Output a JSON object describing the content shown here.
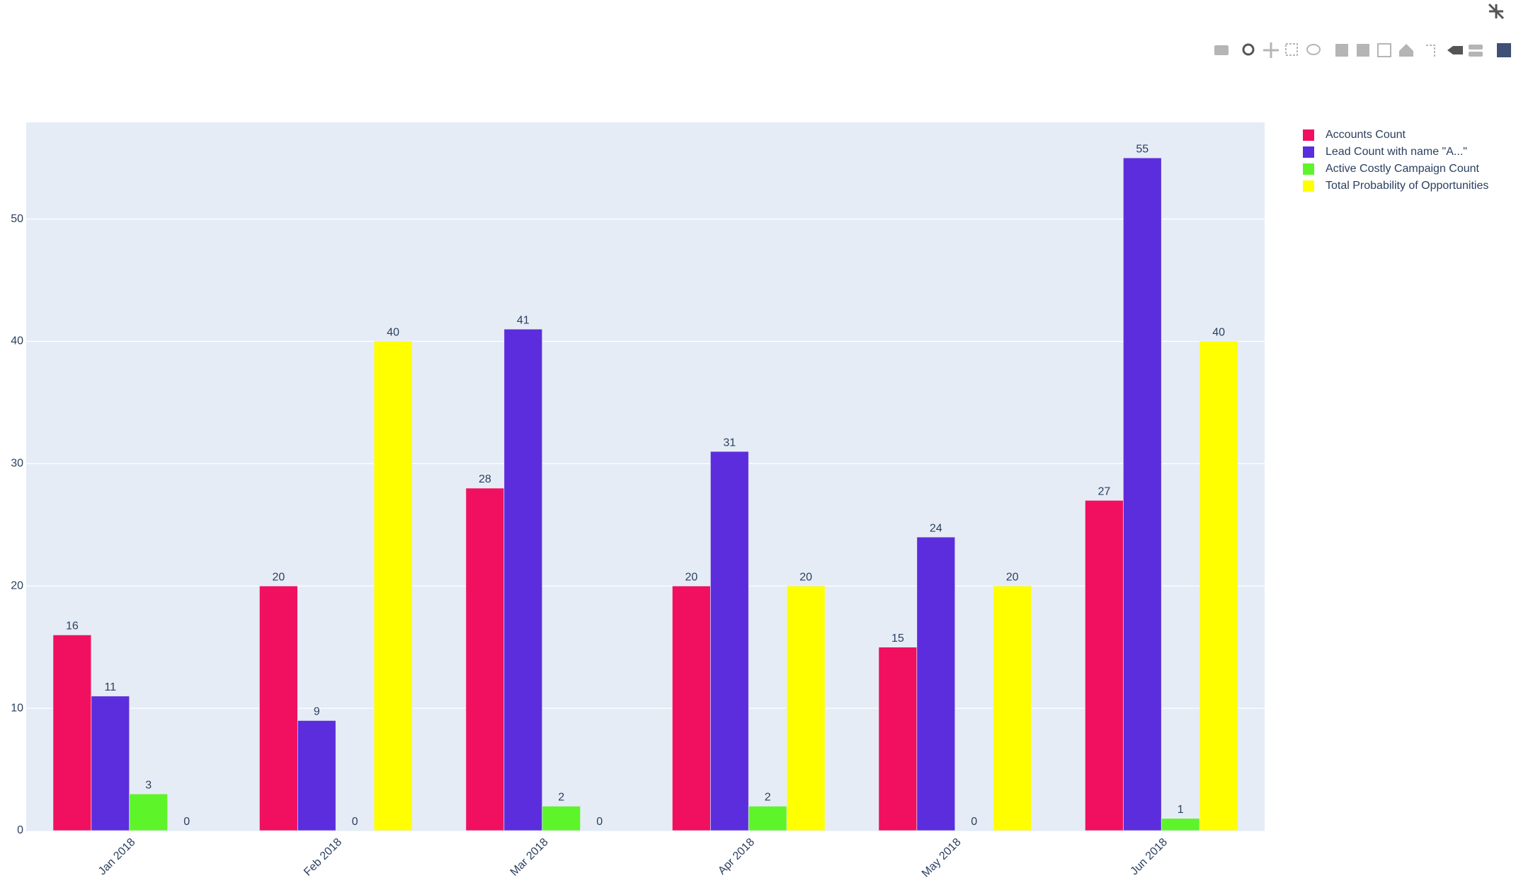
{
  "chart_data": {
    "type": "bar",
    "categories": [
      "Jan 2018",
      "Feb 2018",
      "Mar 2018",
      "Apr 2018",
      "May 2018",
      "Jun 2018"
    ],
    "series": [
      {
        "name": "Accounts Count",
        "color": "#f0105f",
        "values": [
          16,
          20,
          28,
          20,
          15,
          27
        ]
      },
      {
        "name": "Lead Count with name \"A...\"",
        "color": "#5c2ddc",
        "values": [
          11,
          9,
          41,
          31,
          24,
          55
        ]
      },
      {
        "name": "Active Costly Campaign Count",
        "color": "#5ef42a",
        "values": [
          3,
          0,
          2,
          2,
          0,
          1
        ]
      },
      {
        "name": "Total Probability of Opportunities",
        "color": "#ffff00",
        "values": [
          0,
          40,
          0,
          20,
          20,
          40
        ]
      }
    ],
    "ylim": [
      0,
      57.9
    ],
    "yticks": [
      0,
      10,
      20,
      30,
      40,
      50
    ],
    "grid": true,
    "legend": "right"
  }
}
